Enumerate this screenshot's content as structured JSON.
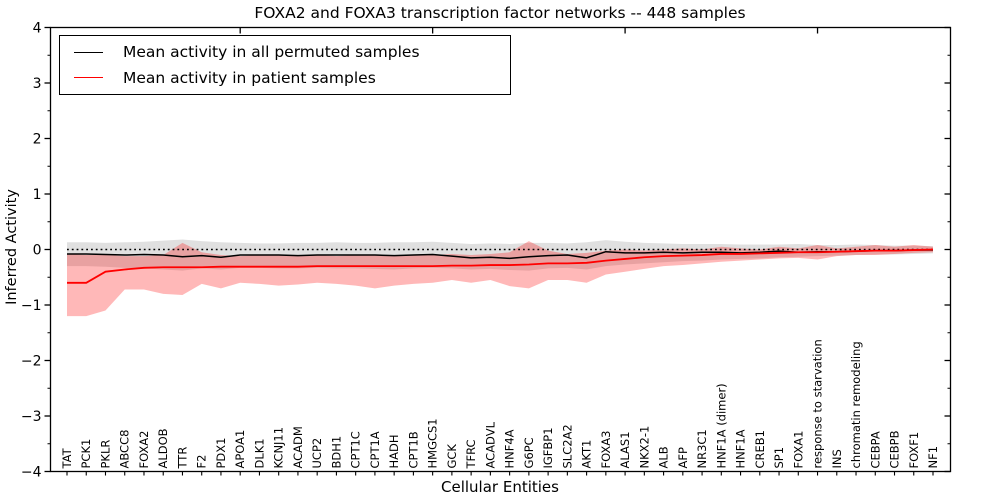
{
  "chart_data": {
    "type": "line",
    "title": "FOXA2 and FOXA3 transcription factor networks -- 448 samples",
    "xlabel": "Cellular Entities",
    "ylabel": "Inferred Activity",
    "ylim": [
      -4,
      4
    ],
    "yticks": [
      4,
      3,
      2,
      1,
      0,
      -1,
      -2,
      -3,
      -4
    ],
    "ytick_minor_step": 0.5,
    "xticks_top": [
      10,
      20,
      30,
      40
    ],
    "grid": false,
    "zero_line_style": "dotted",
    "legend_position": "upper left",
    "categories": [
      "TAT",
      "PCK1",
      "PKLR",
      "ABCC8",
      "FOXA2",
      "ALDOB",
      "TTR",
      "F2",
      "PDX1",
      "APOA1",
      "DLK1",
      "KCNJ11",
      "ACADM",
      "UCP2",
      "BDH1",
      "CPT1C",
      "CPT1A",
      "HADH",
      "CPT1B",
      "HMGCS1",
      "GCK",
      "TFRC",
      "ACADVL",
      "HNF4A",
      "G6PC",
      "IGFBP1",
      "SLC2A2",
      "AKT1",
      "FOXA3",
      "ALAS1",
      "NKX2-1",
      "ALB",
      "AFP",
      "NR3C1",
      "HNF1A (dimer)",
      "HNF1A",
      "CREB1",
      "SP1",
      "FOXA1",
      "response to starvation",
      "INS",
      "chromatin remodeling",
      "CEBPA",
      "CEBPB",
      "FOXF1",
      "NF1"
    ],
    "series": [
      {
        "name": "Mean activity in all permuted samples",
        "color": "#000000",
        "line_width": 1.5,
        "band_color": "rgba(0,0,0,0.12)",
        "values": [
          -0.08,
          -0.08,
          -0.09,
          -0.1,
          -0.09,
          -0.1,
          -0.13,
          -0.11,
          -0.14,
          -0.1,
          -0.1,
          -0.1,
          -0.11,
          -0.1,
          -0.1,
          -0.1,
          -0.1,
          -0.11,
          -0.1,
          -0.09,
          -0.12,
          -0.15,
          -0.14,
          -0.16,
          -0.13,
          -0.11,
          -0.1,
          -0.15,
          -0.04,
          -0.06,
          -0.06,
          -0.05,
          -0.06,
          -0.05,
          -0.05,
          -0.06,
          -0.05,
          -0.03,
          -0.05,
          -0.04,
          -0.04,
          -0.03,
          -0.02,
          -0.02,
          -0.01,
          -0.01
        ],
        "band_upper": [
          0.13,
          0.13,
          0.12,
          0.13,
          0.14,
          0.16,
          0.18,
          0.15,
          0.13,
          0.12,
          0.11,
          0.11,
          0.12,
          0.12,
          0.13,
          0.12,
          0.12,
          0.13,
          0.13,
          0.14,
          0.12,
          0.1,
          0.11,
          0.1,
          0.12,
          0.12,
          0.11,
          0.13,
          0.17,
          0.14,
          0.12,
          0.11,
          0.1,
          0.1,
          0.1,
          0.09,
          0.09,
          0.09,
          0.1,
          0.08,
          0.08,
          0.09,
          0.08,
          0.07,
          0.07,
          0.06
        ],
        "band_lower": [
          -0.3,
          -0.3,
          -0.31,
          -0.33,
          -0.34,
          -0.36,
          -0.38,
          -0.34,
          -0.36,
          -0.33,
          -0.33,
          -0.34,
          -0.34,
          -0.33,
          -0.34,
          -0.34,
          -0.35,
          -0.36,
          -0.34,
          -0.33,
          -0.34,
          -0.36,
          -0.35,
          -0.37,
          -0.38,
          -0.34,
          -0.33,
          -0.36,
          -0.3,
          -0.27,
          -0.25,
          -0.23,
          -0.21,
          -0.2,
          -0.18,
          -0.17,
          -0.16,
          -0.14,
          -0.13,
          -0.12,
          -0.11,
          -0.1,
          -0.09,
          -0.09,
          -0.08,
          -0.07
        ]
      },
      {
        "name": "Mean activity in patient samples",
        "color": "#ff0000",
        "line_width": 1.8,
        "band_color": "rgba(255,0,0,0.28)",
        "values": [
          -0.6,
          -0.6,
          -0.4,
          -0.36,
          -0.33,
          -0.32,
          -0.32,
          -0.32,
          -0.31,
          -0.31,
          -0.31,
          -0.31,
          -0.31,
          -0.3,
          -0.3,
          -0.3,
          -0.3,
          -0.3,
          -0.3,
          -0.3,
          -0.29,
          -0.29,
          -0.28,
          -0.28,
          -0.27,
          -0.25,
          -0.25,
          -0.24,
          -0.2,
          -0.17,
          -0.14,
          -0.12,
          -0.11,
          -0.1,
          -0.08,
          -0.08,
          -0.07,
          -0.06,
          -0.05,
          -0.05,
          -0.04,
          -0.03,
          -0.02,
          -0.02,
          -0.01,
          0.0
        ],
        "band_upper": [
          -0.08,
          -0.1,
          -0.1,
          -0.12,
          -0.12,
          -0.1,
          0.12,
          -0.05,
          -0.1,
          -0.12,
          -0.1,
          -0.1,
          -0.12,
          -0.1,
          -0.12,
          -0.1,
          -0.1,
          -0.12,
          -0.1,
          -0.1,
          -0.08,
          -0.1,
          -0.08,
          -0.05,
          0.15,
          -0.02,
          -0.08,
          -0.06,
          -0.02,
          0.0,
          -0.02,
          0.0,
          0.02,
          0.0,
          0.05,
          0.02,
          0.0,
          0.05,
          0.02,
          0.08,
          0.02,
          0.05,
          0.08,
          0.05,
          0.08,
          0.05
        ],
        "band_lower": [
          -1.2,
          -1.2,
          -1.1,
          -0.72,
          -0.72,
          -0.8,
          -0.82,
          -0.62,
          -0.7,
          -0.6,
          -0.62,
          -0.65,
          -0.63,
          -0.6,
          -0.62,
          -0.65,
          -0.7,
          -0.65,
          -0.62,
          -0.6,
          -0.55,
          -0.6,
          -0.55,
          -0.66,
          -0.7,
          -0.55,
          -0.55,
          -0.6,
          -0.45,
          -0.4,
          -0.35,
          -0.3,
          -0.28,
          -0.25,
          -0.22,
          -0.2,
          -0.18,
          -0.16,
          -0.15,
          -0.18,
          -0.12,
          -0.1,
          -0.1,
          -0.08,
          -0.06,
          -0.05
        ]
      }
    ]
  },
  "colors": {
    "axis": "#000000",
    "background": "#ffffff",
    "permuted_line": "#000000",
    "patient_line": "#ff0000"
  }
}
